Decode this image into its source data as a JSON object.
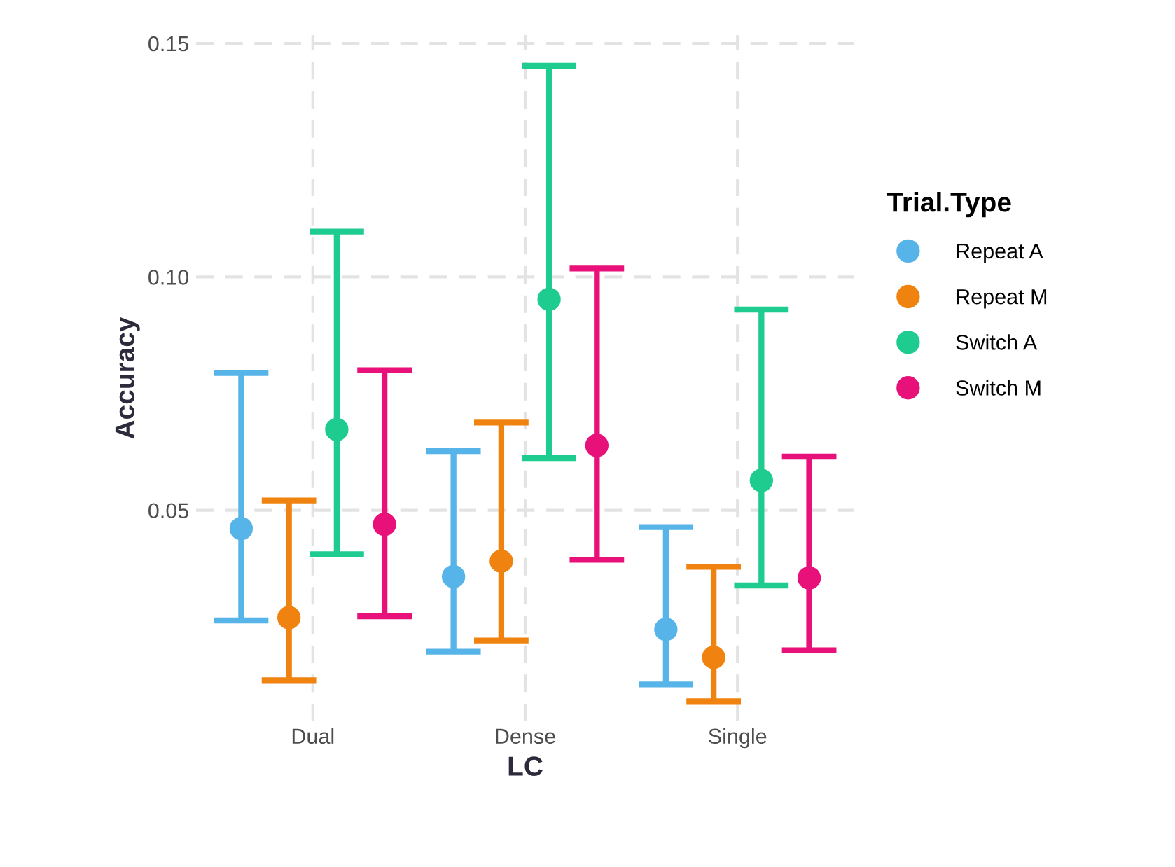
{
  "chart_data": {
    "type": "scatter",
    "xlabel": "LC",
    "ylabel": "Accuracy",
    "legend_title": "Trial.Type",
    "categories": [
      "Dual",
      "Dense",
      "Single"
    ],
    "ylim": [
      0.0048,
      0.1518
    ],
    "yticks": [
      0.05,
      {
        "value": 0.1,
        "label": "0.10"
      },
      0.15
    ],
    "grid": true,
    "legend": "right",
    "marker": "circle",
    "series": [
      {
        "name": "Repeat A",
        "color": "#56b4e9",
        "values": [
          0.0461,
          0.0358,
          0.0245
        ],
        "errors": [
          [
            0.0264,
            0.0794
          ],
          [
            0.0197,
            0.0627
          ],
          [
            0.0127,
            0.0464
          ]
        ]
      },
      {
        "name": "Repeat M",
        "color": "#f0820f",
        "values": [
          0.027,
          0.0391,
          0.0185
        ],
        "errors": [
          [
            0.0136,
            0.0521
          ],
          [
            0.0221,
            0.0688
          ],
          [
            0.0091,
            0.0379
          ]
        ]
      },
      {
        "name": "Switch A",
        "color": "#1fcc8f",
        "values": [
          0.0673,
          0.0952,
          0.0564
        ],
        "errors": [
          [
            0.0406,
            0.1097
          ],
          [
            0.0612,
            0.1452
          ],
          [
            0.0339,
            0.093
          ]
        ]
      },
      {
        "name": "Switch M",
        "color": "#e8117a",
        "values": [
          0.047,
          0.0639,
          0.0355
        ],
        "errors": [
          [
            0.0273,
            0.08
          ],
          [
            0.0394,
            0.1018
          ],
          [
            0.02,
            0.0615
          ]
        ]
      }
    ]
  }
}
